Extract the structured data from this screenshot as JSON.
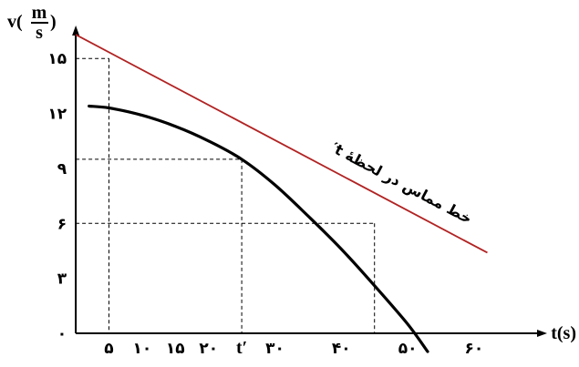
{
  "chart_data": {
    "type": "line",
    "x_axis_label": "t(s)",
    "y_axis_label_prefix": "v(",
    "y_axis_label_numerator": "m",
    "y_axis_label_denominator": "s",
    "y_axis_label_suffix": ")",
    "x_ticks": [
      {
        "value": 5,
        "label": "۵"
      },
      {
        "value": 10,
        "label": "۱۰"
      },
      {
        "value": 15,
        "label": "۱۵"
      },
      {
        "value": 20,
        "label": "۲۰"
      },
      {
        "value": 30,
        "label": "۳۰"
      },
      {
        "value": 40,
        "label": "۴۰"
      },
      {
        "value": 50,
        "label": "۵۰"
      },
      {
        "value": 60,
        "label": "۶۰"
      }
    ],
    "y_ticks": [
      {
        "value": 0,
        "label": "۰"
      },
      {
        "value": 3,
        "label": "۳"
      },
      {
        "value": 6,
        "label": "۶"
      },
      {
        "value": 9,
        "label": "۹"
      },
      {
        "value": 12,
        "label": "۱۲"
      },
      {
        "value": 15,
        "label": "۱۵"
      }
    ],
    "xlim": [
      -1.8,
      71
    ],
    "ylim": [
      0,
      16.8
    ],
    "t_prime_label": "t′",
    "t_prime_value": 25,
    "series": [
      {
        "points": [
          [
            2,
            12.4
          ],
          [
            5,
            12.3
          ],
          [
            10,
            11.9
          ],
          [
            15,
            11.3
          ],
          [
            20,
            10.5
          ],
          [
            25,
            9.5
          ],
          [
            30,
            8.1
          ],
          [
            35,
            6.4
          ],
          [
            40,
            4.6
          ],
          [
            45,
            2.6
          ],
          [
            50,
            0.5
          ],
          [
            53,
            -1.0
          ]
        ]
      }
    ],
    "tangent_line": {
      "label": "خط مماس در لحظهٔ t′",
      "points": [
        [
          0,
          16.3
        ],
        [
          62,
          4.4
        ]
      ],
      "color": "#b22222"
    },
    "guide_points": [
      {
        "x": 5,
        "y": 15
      },
      {
        "x": 25,
        "y": 9.5
      },
      {
        "x": 45,
        "y": 6
      }
    ],
    "grid": false,
    "legend": "none"
  }
}
